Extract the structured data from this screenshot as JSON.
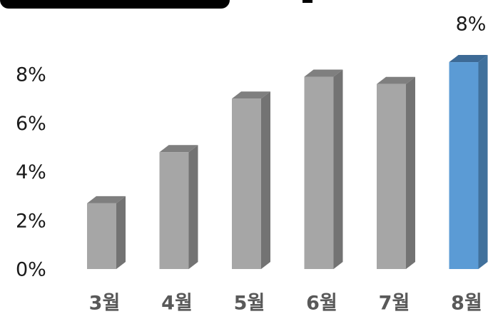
{
  "chart_data": {
    "type": "bar",
    "title": "",
    "xlabel": "",
    "ylabel": "",
    "categories": [
      "3월",
      "4월",
      "5월",
      "6월",
      "7월",
      "8월"
    ],
    "values": [
      2.7,
      4.8,
      7.0,
      7.9,
      7.6,
      8.5
    ],
    "ylim": [
      0,
      9
    ],
    "yticks": [
      "0%",
      "2%",
      "4%",
      "6%",
      "8%"
    ],
    "data_labels": [
      "",
      "",
      "",
      "",
      "",
      "8%"
    ],
    "grid": false,
    "legend": "none",
    "colors": {
      "default_front": "#a6a6a6",
      "default_side": "#737373",
      "default_top": "#7f7f7f",
      "highlight_front": "#5b9bd5",
      "highlight_side": "#41719c",
      "highlight_top": "#3d6a96"
    },
    "highlight_index": 5
  }
}
